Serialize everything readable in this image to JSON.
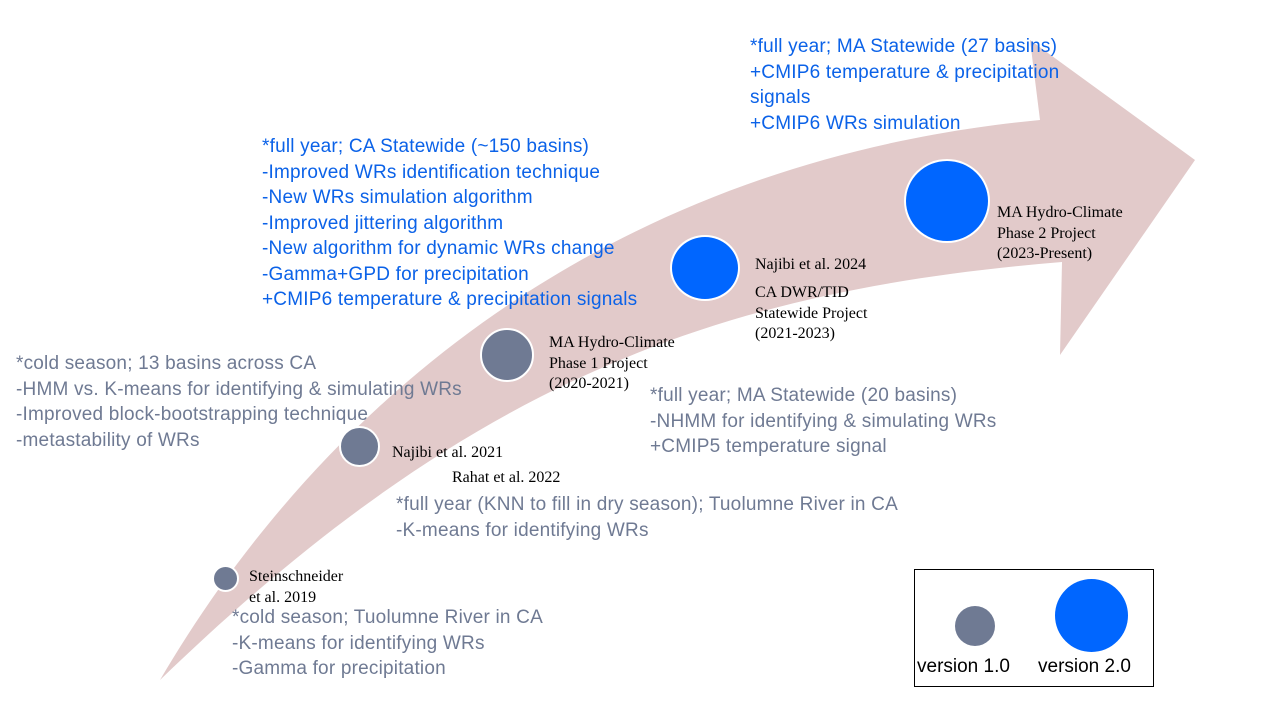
{
  "colors": {
    "version1": "#6f7a93",
    "version2": "#0066ff",
    "arrow": "#e2caca",
    "text_v1": "#6f7a93",
    "text_v2": "#0b62e8"
  },
  "milestones": [
    {
      "label_lines": [
        "Steinschneider",
        "et al. 2019"
      ],
      "version": "1.0",
      "notes": [
        "*cold season; Tuolumne River in CA",
        "-K-means for identifying WRs",
        "-Gamma for precipitation"
      ]
    },
    {
      "label_lines": [
        "Najibi et al. 2021"
      ],
      "version": "1.0",
      "notes": [
        "*cold season; 13 basins across CA",
        "-HMM vs. K-means for identifying & simulating WRs",
        "-Improved block-bootstrapping technique",
        "-metastability of WRs"
      ]
    },
    {
      "label_lines": [
        "Rahat et al. 2022"
      ],
      "version": "1.0",
      "notes": [
        "*full year (KNN to fill in dry season); Tuolumne River in CA",
        "-K-means for identifying WRs"
      ]
    },
    {
      "label_lines": [
        "MA Hydro-Climate",
        "Phase 1 Project",
        "(2020-2021)"
      ],
      "version": "1.0",
      "notes": [
        "*full year; MA Statewide (20 basins)",
        "-NHMM for identifying & simulating WRs",
        "+CMIP5 temperature signal"
      ]
    },
    {
      "label_lines": [
        "Najibi et al. 2024"
      ],
      "label2_lines": [
        "CA DWR/TID",
        "Statewide Project",
        "(2021-2023)"
      ],
      "version": "2.0",
      "notes": [
        "*full year; CA Statewide (~150 basins)",
        "-Improved WRs identification technique",
        "-New WRs simulation algorithm",
        "-Improved jittering algorithm",
        "-New algorithm for dynamic WRs change",
        "-Gamma+GPD for precipitation",
        "+CMIP6 temperature & precipitation signals"
      ]
    },
    {
      "label_lines": [
        "MA Hydro-Climate",
        "Phase 2 Project",
        "(2023-Present)"
      ],
      "version": "2.0",
      "notes": [
        "*full year; MA Statewide (27 basins)",
        "+CMIP6 temperature & precipitation",
        "signals",
        "+CMIP6 WRs simulation"
      ]
    }
  ],
  "legend": {
    "v1_label": "version 1.0",
    "v2_label": "version 2.0"
  }
}
